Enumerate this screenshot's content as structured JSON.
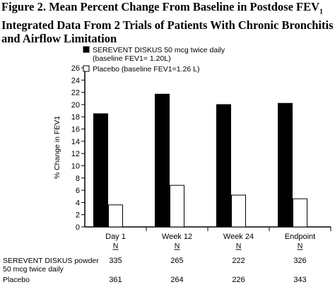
{
  "figure": {
    "title_line1_main": "Figure 2. Mean Percent Change From Baseline in Postdose FEV",
    "title_line1_sub": "1",
    "title_line2": "Integrated Data From 2 Trials of Patients With Chronic Bronchitis",
    "title_line3": "and Airflow Limitation"
  },
  "chart_data": {
    "type": "bar",
    "ylabel": "% Change in FEV1",
    "ylim": [
      0,
      26
    ],
    "yticks": [
      0,
      2,
      4,
      6,
      8,
      10,
      12,
      14,
      16,
      18,
      20,
      22,
      24,
      26
    ],
    "categories": [
      "Day 1",
      "Week 12",
      "Week 24",
      "Endpoint"
    ],
    "series": [
      {
        "name": "SEREVENT DISKUS 50 mcg twice daily",
        "baseline_note": "(baseline FEV1= 1.20L)",
        "color": "#000000",
        "values": [
          18.5,
          21.7,
          20.0,
          20.2
        ]
      },
      {
        "name": "Placebo",
        "baseline_note": "(baseline FEV1=1.26 L)",
        "color": "#ffffff",
        "values": [
          3.6,
          6.8,
          5.2,
          4.6
        ]
      }
    ],
    "legend_position": "top-left",
    "n_table": {
      "header": "N",
      "rows": [
        {
          "label_line1": "SEREVENT DISKUS powder",
          "label_line2": "50 mcg twice daily",
          "values": [
            "335",
            "265",
            "222",
            "326"
          ]
        },
        {
          "label_line1": "Placebo",
          "label_line2": "",
          "values": [
            "361",
            "264",
            "226",
            "343"
          ]
        }
      ]
    }
  }
}
